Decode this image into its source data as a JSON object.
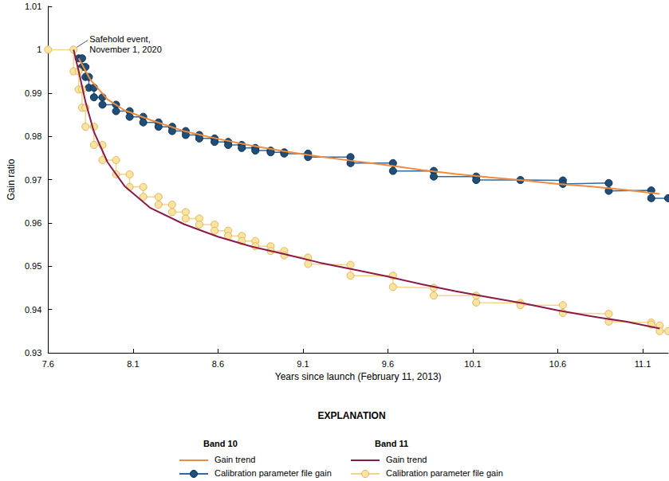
{
  "chart_data": {
    "type": "line",
    "x_label": "Years since launch (February 11, 2013)",
    "y_label": "Gain ratio",
    "xlim": [
      7.6,
      11.25
    ],
    "xticks": [
      7.6,
      8.1,
      8.6,
      9.1,
      9.6,
      10.1,
      10.6,
      11.1
    ],
    "ylim": [
      0.93,
      1.01
    ],
    "yticks": [
      0.93,
      0.94,
      0.95,
      0.96,
      0.97,
      0.98,
      0.99,
      1,
      1.01
    ],
    "grid": false,
    "legend": "bottom",
    "legend_title": "EXPLANATION",
    "annotation": {
      "text": "Safehold event,\nNovember 1, 2020",
      "x": 7.75,
      "y": 1.0
    },
    "series": [
      {
        "name": "Gain trend",
        "band": "Band 10",
        "color": "#f08c3e",
        "marker": "none",
        "line_style": "solid",
        "x": [
          7.78,
          7.85,
          7.95,
          8.05,
          8.2,
          8.4,
          8.6,
          8.8,
          9.0,
          9.2,
          9.4,
          9.6,
          9.8,
          10.0,
          10.2,
          10.4,
          10.6,
          10.8,
          11.0,
          11.2
        ],
        "values": [
          0.998,
          0.993,
          0.9885,
          0.986,
          0.9838,
          0.9812,
          0.9794,
          0.9778,
          0.9765,
          0.9753,
          0.9743,
          0.9733,
          0.9722,
          0.9713,
          0.9705,
          0.9698,
          0.969,
          0.9684,
          0.9676,
          0.9667
        ]
      },
      {
        "name": "Calibration parameter file gain",
        "band": "Band 10",
        "color": "#1f4e79",
        "marker": "circle",
        "line_style": "solid",
        "x": [
          7.78,
          7.8,
          7.8,
          7.82,
          7.82,
          7.84,
          7.84,
          7.87,
          7.87,
          7.92,
          7.92,
          8.0,
          8.0,
          8.08,
          8.08,
          8.16,
          8.16,
          8.25,
          8.25,
          8.33,
          8.33,
          8.41,
          8.41,
          8.49,
          8.49,
          8.58,
          8.58,
          8.66,
          8.66,
          8.74,
          8.74,
          8.82,
          8.82,
          8.91,
          8.91,
          8.99,
          8.99,
          9.13,
          9.13,
          9.38,
          9.38,
          9.63,
          9.63,
          9.87,
          9.87,
          10.12,
          10.12,
          10.38,
          10.63,
          10.63,
          10.9,
          10.9,
          11.15,
          11.15,
          11.25
        ],
        "values": [
          0.998,
          0.998,
          0.996,
          0.996,
          0.9937,
          0.9937,
          0.9912,
          0.9912,
          0.989,
          0.989,
          0.9873,
          0.9873,
          0.9858,
          0.9858,
          0.9845,
          0.9845,
          0.9832,
          0.9832,
          0.9822,
          0.9822,
          0.9812,
          0.9812,
          0.9803,
          0.9803,
          0.9795,
          0.9795,
          0.9787,
          0.9787,
          0.978,
          0.978,
          0.9773,
          0.9773,
          0.9767,
          0.9767,
          0.9763,
          0.9763,
          0.976,
          0.976,
          0.9752,
          0.9752,
          0.9738,
          0.9738,
          0.972,
          0.972,
          0.9707,
          0.9707,
          0.9699,
          0.9699,
          0.9698,
          0.969,
          0.9692,
          0.9674,
          0.9675,
          0.9657,
          0.9657
        ]
      },
      {
        "name": "Gain trend",
        "band": "Band 11",
        "color": "#8b1a4a",
        "marker": "none",
        "line_style": "solid",
        "x": [
          7.75,
          7.78,
          7.82,
          7.87,
          7.95,
          8.05,
          8.2,
          8.4,
          8.6,
          8.8,
          9.0,
          9.2,
          9.4,
          9.6,
          9.8,
          10.0,
          10.2,
          10.4,
          10.6,
          10.8,
          11.0,
          11.2
        ],
        "values": [
          1.0,
          0.995,
          0.988,
          0.981,
          0.974,
          0.9685,
          0.9635,
          0.9597,
          0.9568,
          0.9545,
          0.9527,
          0.9508,
          0.9492,
          0.9476,
          0.9458,
          0.9442,
          0.9428,
          0.9414,
          0.9398,
          0.9384,
          0.9372,
          0.9356
        ]
      },
      {
        "name": "Calibration parameter file gain",
        "band": "Band 11",
        "color": "#fbe3a1",
        "marker": "circle",
        "line_style": "solid",
        "x": [
          7.6,
          7.75,
          7.75,
          7.78,
          7.78,
          7.8,
          7.8,
          7.82,
          7.82,
          7.87,
          7.87,
          7.92,
          7.92,
          8.0,
          8.0,
          8.08,
          8.08,
          8.16,
          8.16,
          8.25,
          8.25,
          8.33,
          8.33,
          8.41,
          8.41,
          8.49,
          8.49,
          8.58,
          8.58,
          8.66,
          8.66,
          8.74,
          8.74,
          8.82,
          8.82,
          8.91,
          8.91,
          8.99,
          8.99,
          9.13,
          9.13,
          9.38,
          9.38,
          9.63,
          9.63,
          9.87,
          9.87,
          10.12,
          10.12,
          10.38,
          10.38,
          10.63,
          10.63,
          10.9,
          10.9,
          11.15,
          11.15,
          11.2,
          11.2,
          11.25
        ],
        "values": [
          1.0,
          1.0,
          0.995,
          0.995,
          0.9908,
          0.9908,
          0.9866,
          0.9866,
          0.9822,
          0.9822,
          0.978,
          0.978,
          0.9745,
          0.9745,
          0.9712,
          0.9712,
          0.9683,
          0.9683,
          0.966,
          0.966,
          0.9642,
          0.9642,
          0.9625,
          0.9625,
          0.961,
          0.961,
          0.9596,
          0.9596,
          0.9582,
          0.9582,
          0.957,
          0.957,
          0.9558,
          0.9558,
          0.9546,
          0.9546,
          0.9535,
          0.9535,
          0.9525,
          0.952,
          0.9505,
          0.9503,
          0.9478,
          0.9478,
          0.9452,
          0.945,
          0.9432,
          0.9432,
          0.9416,
          0.9415,
          0.941,
          0.941,
          0.9392,
          0.939,
          0.9372,
          0.937,
          0.9365,
          0.9363,
          0.935,
          0.935
        ]
      }
    ]
  }
}
